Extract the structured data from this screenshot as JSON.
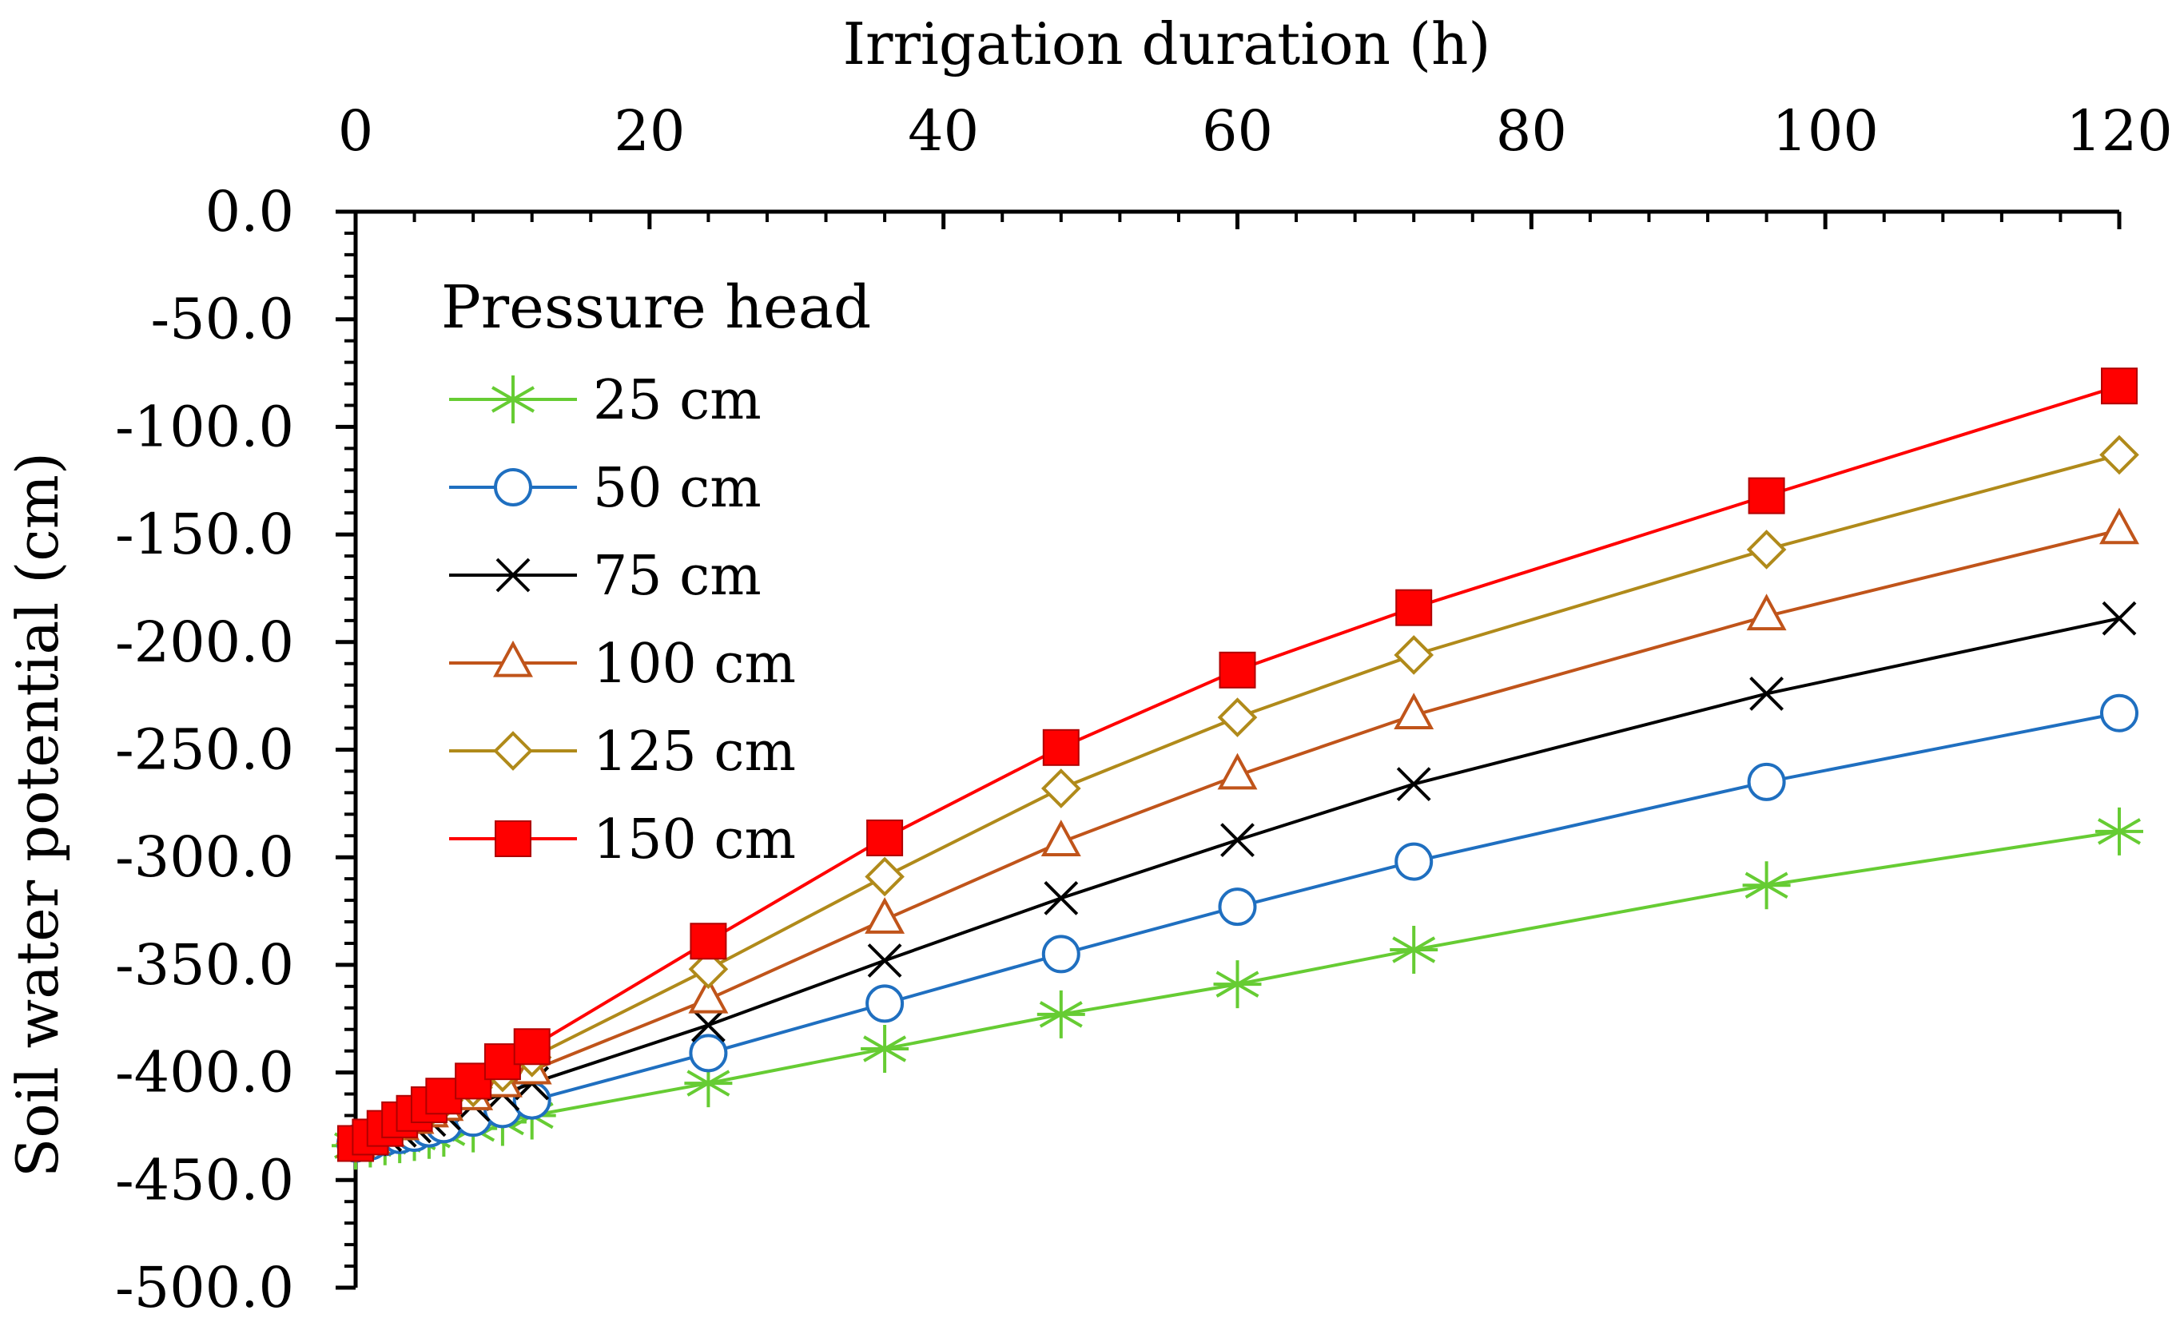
{
  "chart_data": {
    "type": "line",
    "xlabel": "Irrigation duration (h)",
    "ylabel": "Soil water potential (cm)",
    "xlim": [
      0,
      120
    ],
    "ylim": [
      -500,
      0
    ],
    "xticks": [
      0,
      20,
      40,
      60,
      80,
      100,
      120
    ],
    "yticks": [
      0,
      -50,
      -100,
      -150,
      -200,
      -250,
      -300,
      -350,
      -400,
      -450,
      -500
    ],
    "ytick_labels": [
      "0.0",
      "-50.0",
      "-100.0",
      "-150.0",
      "-200.0",
      "-250.0",
      "-300.0",
      "-350.0",
      "-400.0",
      "-450.0",
      "-500.0"
    ],
    "xtick_labels": [
      "0",
      "20",
      "40",
      "60",
      "80",
      "100",
      "120"
    ],
    "x_axis_position": "top",
    "grid": false,
    "legend": {
      "title": "Pressure head",
      "position": "top-left"
    },
    "x": [
      0,
      1,
      2,
      3,
      4,
      5,
      6,
      8,
      10,
      12,
      24,
      36,
      48,
      60,
      72,
      96,
      120
    ],
    "series": [
      {
        "name": "25 cm",
        "marker": "asterisk",
        "color": "#66cc33",
        "values": [
          -434,
          -433,
          -432,
          -431,
          -430,
          -429,
          -428,
          -426,
          -423,
          -420,
          -405,
          -389,
          -373,
          -359,
          -343,
          -313,
          -288
        ]
      },
      {
        "name": "50 cm",
        "marker": "circle",
        "color": "#1f6fc0",
        "values": [
          -433,
          -432,
          -430,
          -429,
          -428,
          -426,
          -424,
          -421,
          -417,
          -413,
          -391,
          -368,
          -345,
          -323,
          -302,
          -265,
          -233
        ]
      },
      {
        "name": "75 cm",
        "marker": "x",
        "color": "#000000",
        "values": [
          -433,
          -431,
          -429,
          -427,
          -425,
          -422,
          -419,
          -415,
          -410,
          -405,
          -378,
          -348,
          -319,
          -292,
          -266,
          -224,
          -189
        ]
      },
      {
        "name": "100 cm",
        "marker": "triangle",
        "color": "#c0541a",
        "values": [
          -433,
          -431,
          -428,
          -425,
          -422,
          -419,
          -416,
          -411,
          -405,
          -399,
          -366,
          -329,
          -293,
          -262,
          -234,
          -188,
          -148
        ]
      },
      {
        "name": "125 cm",
        "marker": "diamond",
        "color": "#b08a1a",
        "values": [
          -433,
          -430,
          -427,
          -424,
          -420,
          -417,
          -413,
          -407,
          -400,
          -393,
          -352,
          -309,
          -268,
          -235,
          -206,
          -157,
          -113
        ]
      },
      {
        "name": "150 cm",
        "marker": "square-filled",
        "color": "#ff0000",
        "values": [
          -433,
          -430,
          -426,
          -422,
          -419,
          -415,
          -411,
          -404,
          -395,
          -388,
          -339,
          -291,
          -249,
          -213,
          -184,
          -132,
          -81
        ]
      }
    ]
  }
}
